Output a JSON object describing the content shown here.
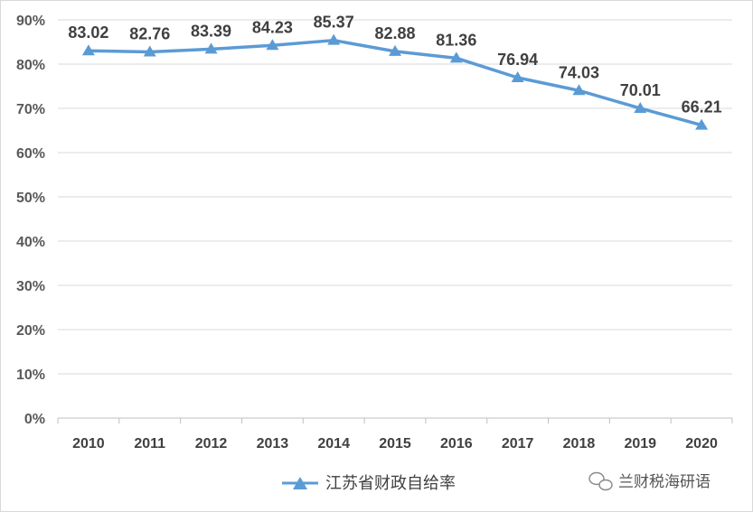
{
  "chart_data": {
    "type": "line",
    "x": [
      "2010",
      "2011",
      "2012",
      "2013",
      "2014",
      "2015",
      "2016",
      "2017",
      "2018",
      "2019",
      "2020"
    ],
    "series": [
      {
        "name": "江苏省财政自给率",
        "values": [
          83.02,
          82.76,
          83.39,
          84.23,
          85.37,
          82.88,
          81.36,
          76.94,
          74.03,
          70.01,
          66.21
        ],
        "labels": [
          "83.02",
          "82.76",
          "83.39",
          "84.23",
          "85.37",
          "82.88",
          "81.36",
          "76.94",
          "74.03",
          "70.01",
          "66.21"
        ]
      }
    ],
    "ylim": [
      0,
      90
    ],
    "yticks": [
      "0%",
      "10%",
      "20%",
      "30%",
      "40%",
      "50%",
      "60%",
      "70%",
      "80%",
      "90%"
    ],
    "grid": true,
    "legend": "bottom",
    "line_color": "#5b9bd5",
    "marker": "triangle"
  },
  "watermark": {
    "text": "兰财税海研语",
    "icon": "wechat-icon"
  }
}
